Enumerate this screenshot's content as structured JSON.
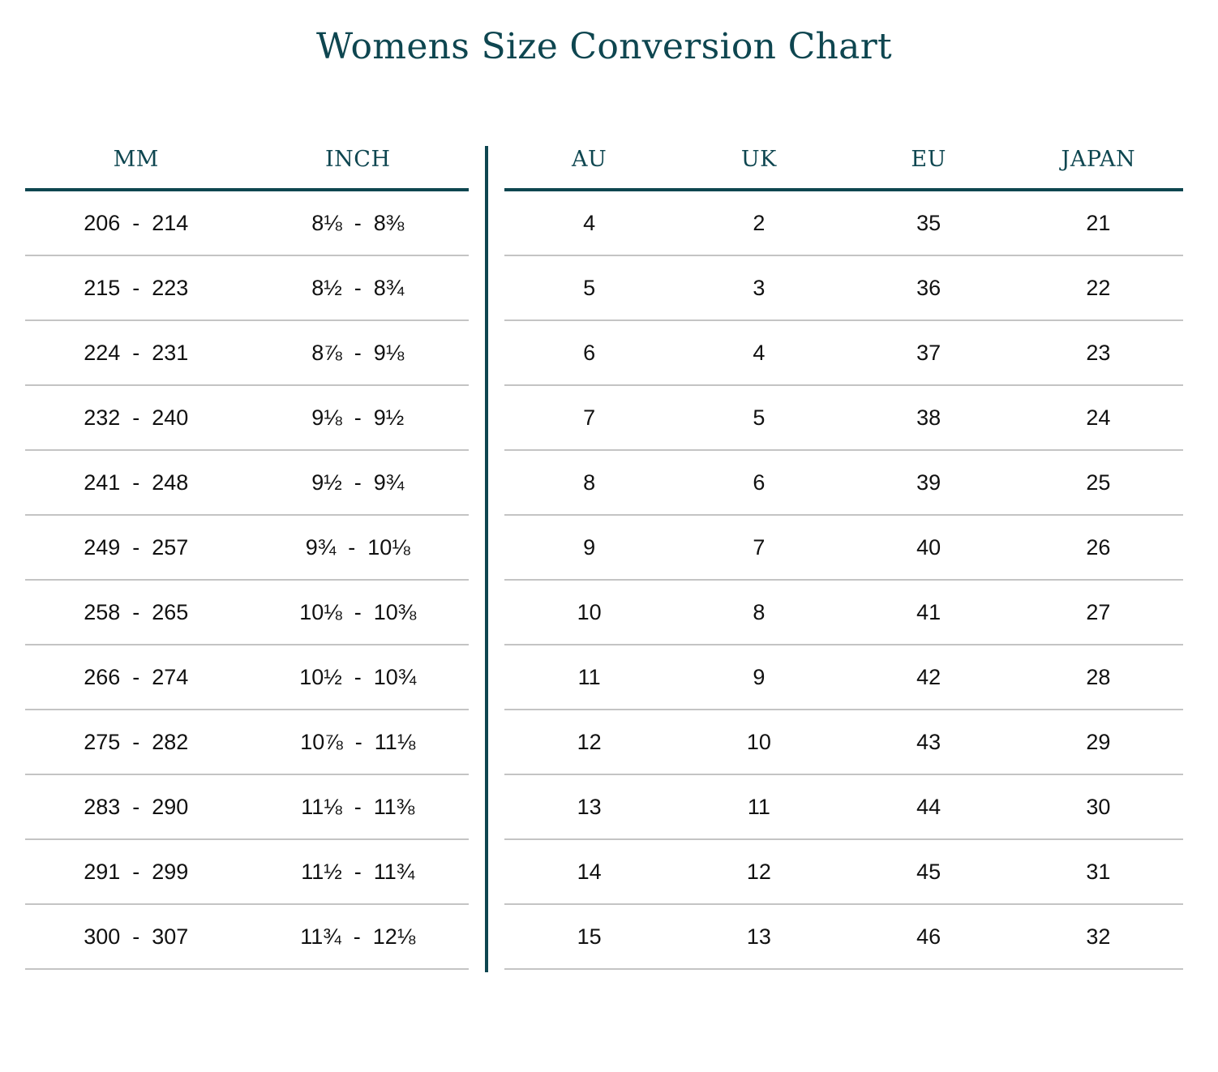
{
  "title": "Womens Size Conversion Chart",
  "colors": {
    "accent": "#0e4650",
    "row_border": "#c4c4c4",
    "text": "#111111"
  },
  "left_table": {
    "headers": [
      "MM",
      "INCH"
    ],
    "rows": [
      [
        "206  -  214",
        "8⅛  -  8⅜"
      ],
      [
        "215  -  223",
        "8½  -  8¾"
      ],
      [
        "224  -  231",
        "8⅞  -  9⅛"
      ],
      [
        "232  -  240",
        "9⅛  -  9½"
      ],
      [
        "241  -  248",
        "9½  -  9¾"
      ],
      [
        "249  -  257",
        "9¾  -  10⅛"
      ],
      [
        "258  -  265",
        "10⅛  -  10⅜"
      ],
      [
        "266  -  274",
        "10½  -  10¾"
      ],
      [
        "275  -  282",
        "10⅞  -  11⅛"
      ],
      [
        "283  -  290",
        "11⅛  -  11⅜"
      ],
      [
        "291  -  299",
        "11½  -  11¾"
      ],
      [
        "300  -  307",
        "11¾  -  12⅛"
      ]
    ]
  },
  "right_table": {
    "headers": [
      "AU",
      "UK",
      "EU",
      "JAPAN"
    ],
    "rows": [
      [
        "4",
        "2",
        "35",
        "21"
      ],
      [
        "5",
        "3",
        "36",
        "22"
      ],
      [
        "6",
        "4",
        "37",
        "23"
      ],
      [
        "7",
        "5",
        "38",
        "24"
      ],
      [
        "8",
        "6",
        "39",
        "25"
      ],
      [
        "9",
        "7",
        "40",
        "26"
      ],
      [
        "10",
        "8",
        "41",
        "27"
      ],
      [
        "11",
        "9",
        "42",
        "28"
      ],
      [
        "12",
        "10",
        "43",
        "29"
      ],
      [
        "13",
        "11",
        "44",
        "30"
      ],
      [
        "14",
        "12",
        "45",
        "31"
      ],
      [
        "15",
        "13",
        "46",
        "32"
      ]
    ]
  }
}
